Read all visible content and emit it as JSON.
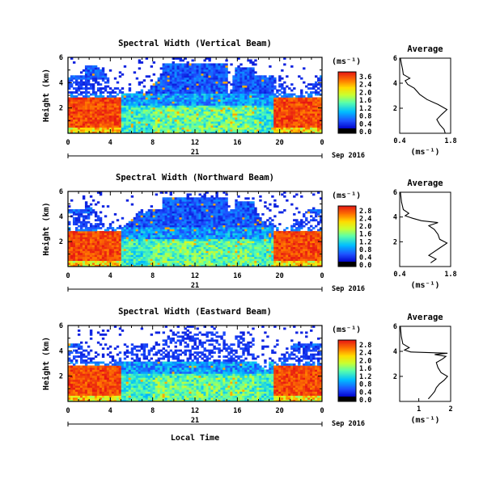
{
  "chart_data": [
    {
      "type": "heatmap",
      "title": "Spectral Width (Vertical Beam)",
      "ylabel": "Height (km)",
      "ylim": [
        0,
        6
      ],
      "yticks": [
        "6",
        "4",
        "2"
      ],
      "xlim": [
        0,
        24
      ],
      "xticks": [
        "0",
        "4",
        "8",
        "12",
        "16",
        "20",
        "0"
      ],
      "day_label": "21",
      "date_label": "Sep 2016",
      "colorbar": {
        "unit_label": "(ms⁻¹)",
        "tick_labels": [
          "3.6",
          "2.4",
          "2.0",
          "1.6",
          "1.2",
          "0.8",
          "0.4",
          "0.0"
        ]
      },
      "profile": {
        "title": "Average",
        "xlabel": "(ms⁻¹)",
        "xlim": [
          0.4,
          1.8
        ],
        "xticks": [
          "0.4",
          "1.8"
        ],
        "ylim": [
          0,
          6
        ],
        "yticks": [
          "6",
          "4",
          "2"
        ],
        "points": [
          [
            1.65,
            0.0
          ],
          [
            1.62,
            0.3
          ],
          [
            1.5,
            0.7
          ],
          [
            1.42,
            1.1
          ],
          [
            1.55,
            1.5
          ],
          [
            1.7,
            1.9
          ],
          [
            1.45,
            2.3
          ],
          [
            1.15,
            2.7
          ],
          [
            0.95,
            3.1
          ],
          [
            0.8,
            3.6
          ],
          [
            0.62,
            3.9
          ],
          [
            0.55,
            4.2
          ],
          [
            0.68,
            4.4
          ],
          [
            0.5,
            4.7
          ],
          [
            0.48,
            5.1
          ],
          [
            0.45,
            5.5
          ],
          [
            0.42,
            6.0
          ]
        ]
      }
    },
    {
      "type": "heatmap",
      "title": "Spectral Width (Northward Beam)",
      "ylabel": "Height (km)",
      "ylim": [
        0,
        6
      ],
      "yticks": [
        "6",
        "4",
        "2"
      ],
      "xlim": [
        0,
        24
      ],
      "xticks": [
        "0",
        "4",
        "8",
        "12",
        "16",
        "20",
        "0"
      ],
      "day_label": "21",
      "date_label": "Sep 2016",
      "colorbar": {
        "unit_label": "(ms⁻¹)",
        "tick_labels": [
          "2.8",
          "2.4",
          "2.0",
          "1.6",
          "1.2",
          "0.8",
          "0.4",
          "0.0"
        ]
      },
      "profile": {
        "title": "Average",
        "xlabel": "(ms⁻¹)",
        "xlim": [
          0.4,
          1.8
        ],
        "xticks": [
          "0.4",
          "1.8"
        ],
        "ylim": [
          0,
          6
        ],
        "yticks": [
          "6",
          "4",
          "2"
        ],
        "points": [
          [
            1.25,
            0.3
          ],
          [
            1.4,
            0.6
          ],
          [
            1.2,
            0.9
          ],
          [
            1.35,
            1.2
          ],
          [
            1.5,
            1.5
          ],
          [
            1.7,
            1.9
          ],
          [
            1.5,
            2.2
          ],
          [
            1.45,
            2.6
          ],
          [
            1.35,
            3.0
          ],
          [
            1.2,
            3.3
          ],
          [
            1.45,
            3.55
          ],
          [
            1.0,
            3.7
          ],
          [
            0.75,
            3.9
          ],
          [
            0.55,
            4.1
          ],
          [
            0.65,
            4.3
          ],
          [
            0.5,
            4.6
          ],
          [
            0.45,
            5.2
          ],
          [
            0.42,
            6.0
          ]
        ]
      }
    },
    {
      "type": "heatmap",
      "title": "Spectral Width (Eastward Beam)",
      "ylabel": "Height (km)",
      "ylim": [
        0,
        6
      ],
      "yticks": [
        "6",
        "4",
        "2"
      ],
      "xlim": [
        0,
        24
      ],
      "xticks": [
        "0",
        "4",
        "8",
        "12",
        "16",
        "20",
        "0"
      ],
      "day_label": "21",
      "date_label": "Sep 2016",
      "xlabel": "Local Time",
      "colorbar": {
        "unit_label": "(ms⁻¹)",
        "tick_labels": [
          "2.8",
          "2.4",
          "2.0",
          "1.6",
          "1.2",
          "0.8",
          "0.4",
          "0.0"
        ]
      },
      "profile": {
        "title": "Average",
        "xlabel": "(ms⁻¹)",
        "xlim": [
          0.4,
          2.0
        ],
        "xticks": [
          "1",
          "2"
        ],
        "ylim": [
          0,
          6
        ],
        "yticks": [
          "6",
          "4",
          "2"
        ],
        "points": [
          [
            1.3,
            0.2
          ],
          [
            1.4,
            0.5
          ],
          [
            1.5,
            0.8
          ],
          [
            1.55,
            1.1
          ],
          [
            1.65,
            1.4
          ],
          [
            1.8,
            1.7
          ],
          [
            1.9,
            2.0
          ],
          [
            1.7,
            2.3
          ],
          [
            1.6,
            2.7
          ],
          [
            1.55,
            3.1
          ],
          [
            1.75,
            3.4
          ],
          [
            1.85,
            3.6
          ],
          [
            1.5,
            3.75
          ],
          [
            1.9,
            3.85
          ],
          [
            0.75,
            3.95
          ],
          [
            0.55,
            4.1
          ],
          [
            0.7,
            4.3
          ],
          [
            0.5,
            4.6
          ],
          [
            0.45,
            5.2
          ],
          [
            0.42,
            6.0
          ]
        ]
      }
    }
  ]
}
